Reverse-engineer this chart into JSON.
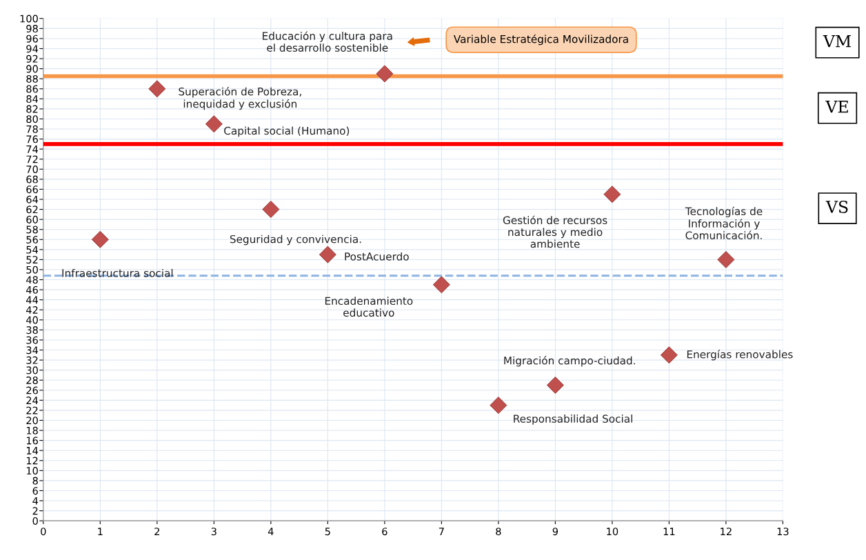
{
  "chart_data": {
    "type": "scatter",
    "x": [
      1,
      2,
      3,
      4,
      5,
      6,
      7,
      8,
      9,
      10,
      11,
      12
    ],
    "series": [
      {
        "color": "#c0504d",
        "values": [
          56,
          86,
          79,
          62,
          53,
          89,
          47,
          23,
          27,
          65,
          33,
          52
        ]
      }
    ],
    "marker": "diamond",
    "xlim": [
      0,
      13
    ],
    "xticks": [
      0,
      1,
      2,
      3,
      4,
      5,
      6,
      7,
      8,
      9,
      10,
      11,
      12,
      13
    ],
    "ylim": [
      0,
      100
    ],
    "yticks": [
      0,
      2,
      4,
      6,
      8,
      10,
      12,
      14,
      16,
      18,
      20,
      22,
      24,
      26,
      28,
      30,
      32,
      34,
      36,
      38,
      40,
      42,
      44,
      46,
      48,
      50,
      52,
      54,
      56,
      58,
      60,
      62,
      64,
      66,
      68,
      70,
      72,
      74,
      76,
      78,
      80,
      82,
      84,
      86,
      88,
      90,
      92,
      94,
      96,
      98,
      100
    ],
    "grid": true,
    "ref_lines": [
      {
        "axis": "y",
        "value": 88.5,
        "color": "#f79646"
      },
      {
        "axis": "y",
        "value": 75,
        "color": "#ff0000"
      },
      {
        "axis": "y",
        "value": 48.8,
        "color": "#8db3e2",
        "line_style": "dashed"
      }
    ],
    "annotations": [
      {
        "text": "Infraestructura social",
        "x": 1,
        "y": 56
      },
      {
        "text": "Superación de Pobreza,\ninequidad y exclusión",
        "x": 2,
        "y": 86
      },
      {
        "text": "Capital social (Humano)",
        "x": 3,
        "y": 79
      },
      {
        "text": "Seguridad y convivencia.",
        "x": 4,
        "y": 62
      },
      {
        "text": "PostAcuerdo",
        "x": 5,
        "y": 53
      },
      {
        "text": "Encadenamiento\neducativo",
        "x": 7,
        "y": 47
      },
      {
        "text": "Responsabilidad Social",
        "x": 8,
        "y": 23
      },
      {
        "text": "Migración campo-ciudad.",
        "x": 9,
        "y": 27
      },
      {
        "text": "Energías renovables",
        "x": 11,
        "y": 33
      },
      "Educación y cultura para\nel desarrollo sostenible",
      "Gestión de recursos\nnaturales y medio\nambiente",
      "Tecnologías de\nInformación y\nComunicación.",
      "Variable Estratégica Movilizadora",
      "VM",
      "VE",
      "VS"
    ]
  }
}
